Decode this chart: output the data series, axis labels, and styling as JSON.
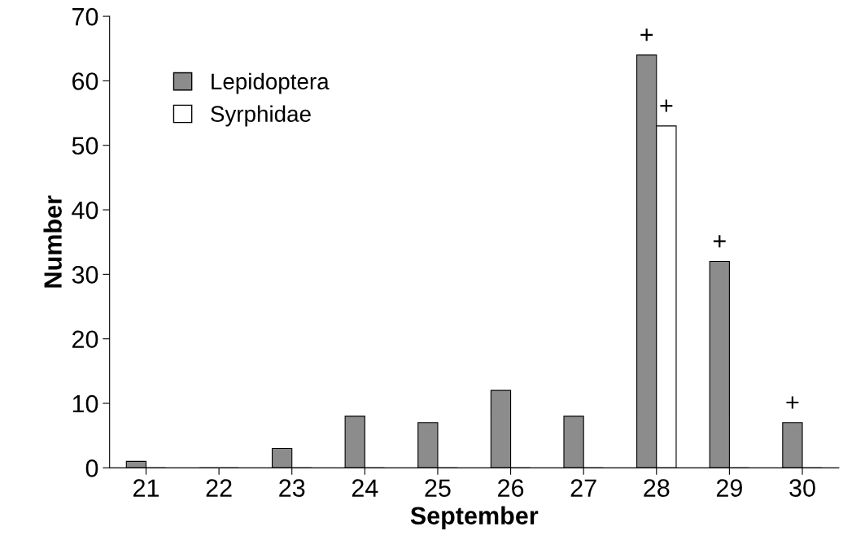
{
  "chart_data": {
    "type": "bar",
    "xlabel": "September",
    "ylabel": "Number",
    "categories": [
      "21",
      "22",
      "23",
      "24",
      "25",
      "26",
      "27",
      "28",
      "29",
      "30"
    ],
    "series": [
      {
        "name": "Lepidoptera",
        "color": "#8c8c8c",
        "values": [
          1,
          0,
          3,
          8,
          7,
          12,
          8,
          64,
          32,
          7
        ]
      },
      {
        "name": "Syrphidae",
        "color": "#ffffff",
        "values": [
          0,
          0,
          0,
          0,
          0,
          0,
          0,
          53,
          0,
          0
        ]
      }
    ],
    "annotations": [
      {
        "text": "+",
        "x": "28",
        "y": 64
      },
      {
        "text": "+",
        "x": "28",
        "y": 53
      },
      {
        "text": "+",
        "x": "29",
        "y": 32
      },
      {
        "text": "+",
        "x": "30",
        "y": 7
      }
    ],
    "ylim": [
      0,
      70
    ],
    "yticks": [
      0,
      10,
      20,
      30,
      40,
      50,
      60,
      70
    ],
    "grid": false,
    "legend": "top left"
  }
}
